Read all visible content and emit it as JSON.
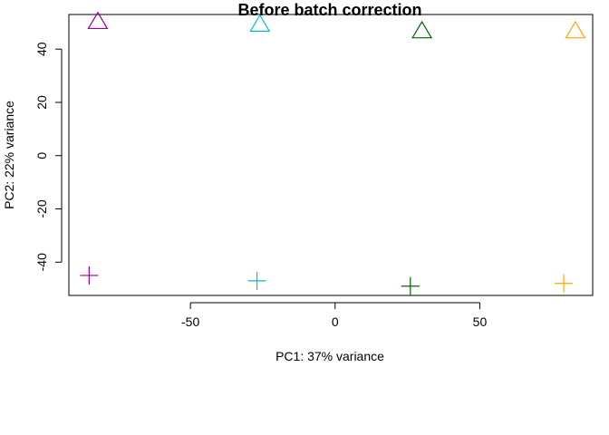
{
  "chart_data": {
    "type": "scatter",
    "title": "Before batch correction",
    "xlabel": "PC1: 37% variance",
    "ylabel": "PC2: 22% variance",
    "xlim": [
      -92,
      89
    ],
    "ylim": [
      -52.5,
      53
    ],
    "x_ticks": [
      -50,
      0,
      50
    ],
    "y_ticks": [
      -40,
      -20,
      0,
      20,
      40
    ],
    "x_tick_labels": [
      "-50",
      "0",
      "50"
    ],
    "y_tick_labels": [
      "-40",
      "-20",
      "0",
      "20",
      "40"
    ],
    "grid": false,
    "points": [
      {
        "x": -82,
        "y": 50,
        "shape": "triangle",
        "color": "#990099"
      },
      {
        "x": -26,
        "y": 49,
        "shape": "triangle",
        "color": "#00BFC4"
      },
      {
        "x": 30,
        "y": 46.5,
        "shape": "triangle",
        "color": "#006400"
      },
      {
        "x": 83,
        "y": 46.5,
        "shape": "triangle",
        "color": "#FFA500"
      },
      {
        "x": -85,
        "y": -45,
        "shape": "plus",
        "color": "#990099"
      },
      {
        "x": -27,
        "y": -47,
        "shape": "plus",
        "color": "#00BFC4"
      },
      {
        "x": 26,
        "y": -49,
        "shape": "plus",
        "color": "#006400"
      },
      {
        "x": 79,
        "y": -48,
        "shape": "plus",
        "color": "#FFA500"
      }
    ]
  }
}
